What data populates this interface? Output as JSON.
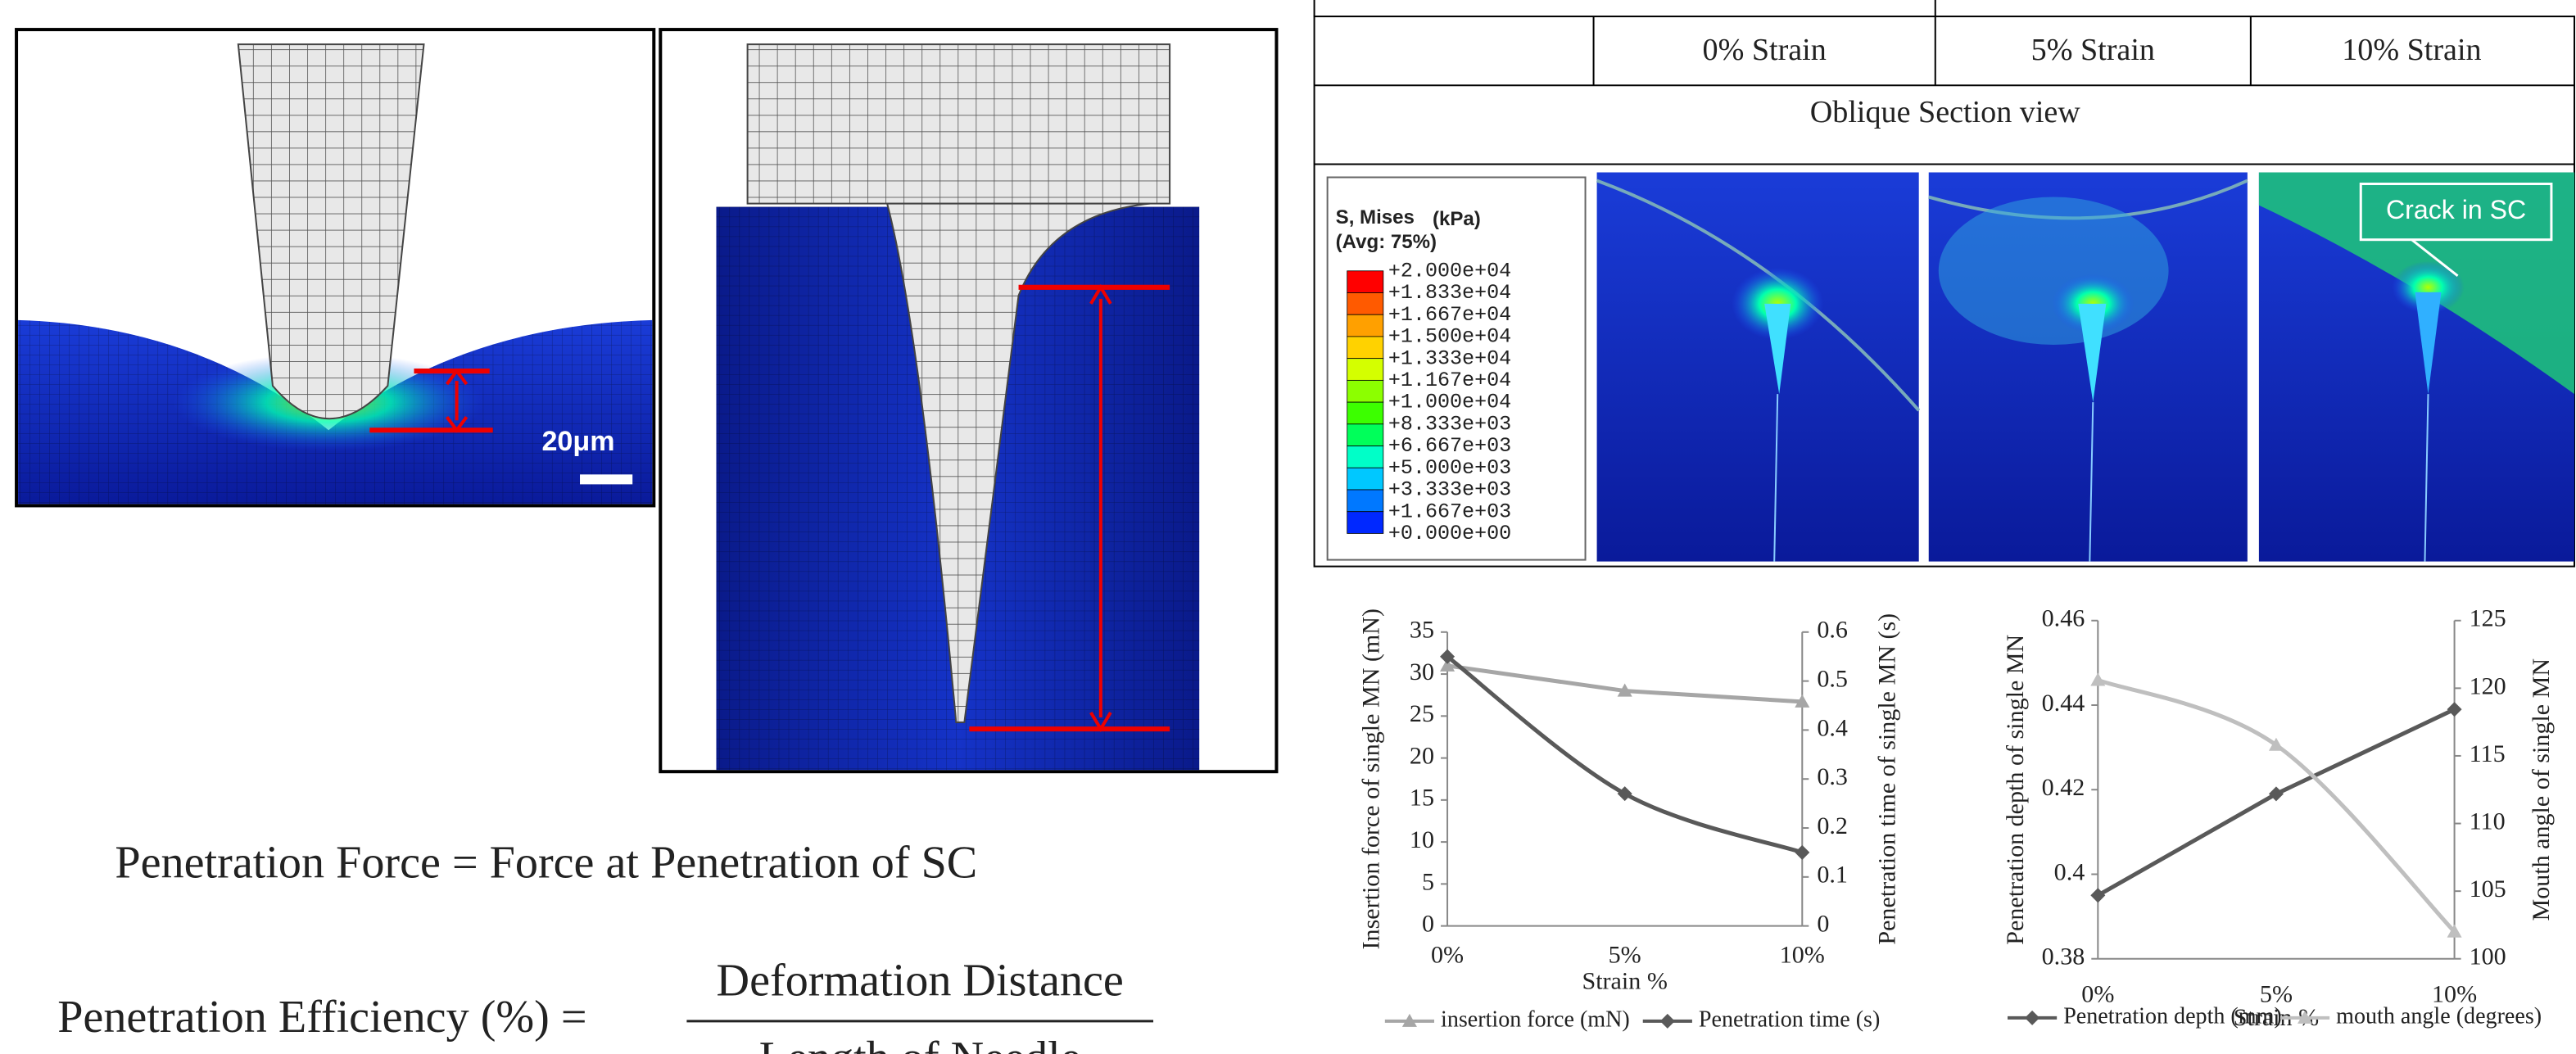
{
  "figure_left": {
    "scale_bar": "20μm"
  },
  "equations": {
    "force": "Penetration Force = Force at Penetration of SC",
    "efficiency_lhs": "Penetration Efficiency (%) =",
    "numerator": "Deformation Distance",
    "denominator": "Length of Needle"
  },
  "table": {
    "columns": [
      "0% Strain",
      "5% Strain",
      "10% Strain"
    ],
    "section": "Oblique Section view",
    "legend_title": "S, Mises",
    "legend_unit": "(kPa)",
    "legend_avg": "(Avg: 75%)",
    "legend_values": [
      "+2.000e+04",
      "+1.833e+04",
      "+1.667e+04",
      "+1.500e+04",
      "+1.333e+04",
      "+1.167e+04",
      "+1.000e+04",
      "+8.333e+03",
      "+6.667e+03",
      "+5.000e+03",
      "+3.333e+03",
      "+1.667e+03",
      "+0.000e+00"
    ],
    "legend_colors": [
      "#ff0000",
      "#ff5a00",
      "#ffa000",
      "#ffd200",
      "#d4ff00",
      "#8cff00",
      "#3cff00",
      "#00ff5a",
      "#00ffc8",
      "#00c8ff",
      "#0078ff",
      "#0028ff"
    ],
    "annotation": "Crack in SC"
  },
  "chart_data": [
    {
      "type": "line",
      "categories": [
        "0%",
        "5%",
        "10%"
      ],
      "xlabel": "Strain %",
      "ylabel": "Insertion force of single MN (mN)",
      "y2label": "Penetration time of  single MN (s)",
      "ylim": [
        0,
        35
      ],
      "yticks": [
        0,
        5,
        10,
        15,
        20,
        25,
        30,
        35
      ],
      "y2lim": [
        0,
        0.6
      ],
      "y2ticks": [
        0,
        0.1,
        0.2,
        0.3,
        0.4,
        0.5,
        0.6
      ],
      "series": [
        {
          "name": "insertion force (mN)",
          "color": "#a6a6a6",
          "marker": "triangle",
          "smooth": false,
          "values": [
            31,
            28,
            26.7
          ]
        },
        {
          "name": "Penetration time (s)",
          "color": "#595959",
          "marker": "diamond",
          "smooth": true,
          "axis": "y2",
          "values": [
            0.55,
            0.27,
            0.15
          ]
        }
      ]
    },
    {
      "type": "line",
      "categories": [
        "0%",
        "5%",
        "10%"
      ],
      "xlabel": "Strain %",
      "ylabel": "Penetration depth of single MN",
      "y2label": "Mouth angle of single MN",
      "ylim": [
        0.38,
        0.46
      ],
      "yticks": [
        0.38,
        0.4,
        0.42,
        0.44,
        0.46
      ],
      "y2lim": [
        100,
        125
      ],
      "y2ticks": [
        100,
        105,
        110,
        115,
        120,
        125
      ],
      "series": [
        {
          "name": "Penetration depth (mm)",
          "color": "#595959",
          "marker": "diamond",
          "smooth": false,
          "values": [
            0.395,
            0.419,
            0.439
          ]
        },
        {
          "name": "mouth angle (degrees)",
          "color": "#bfbfbf",
          "marker": "triangle",
          "smooth": true,
          "axis": "y2",
          "values": [
            120.6,
            115.8,
            102
          ]
        }
      ]
    }
  ]
}
